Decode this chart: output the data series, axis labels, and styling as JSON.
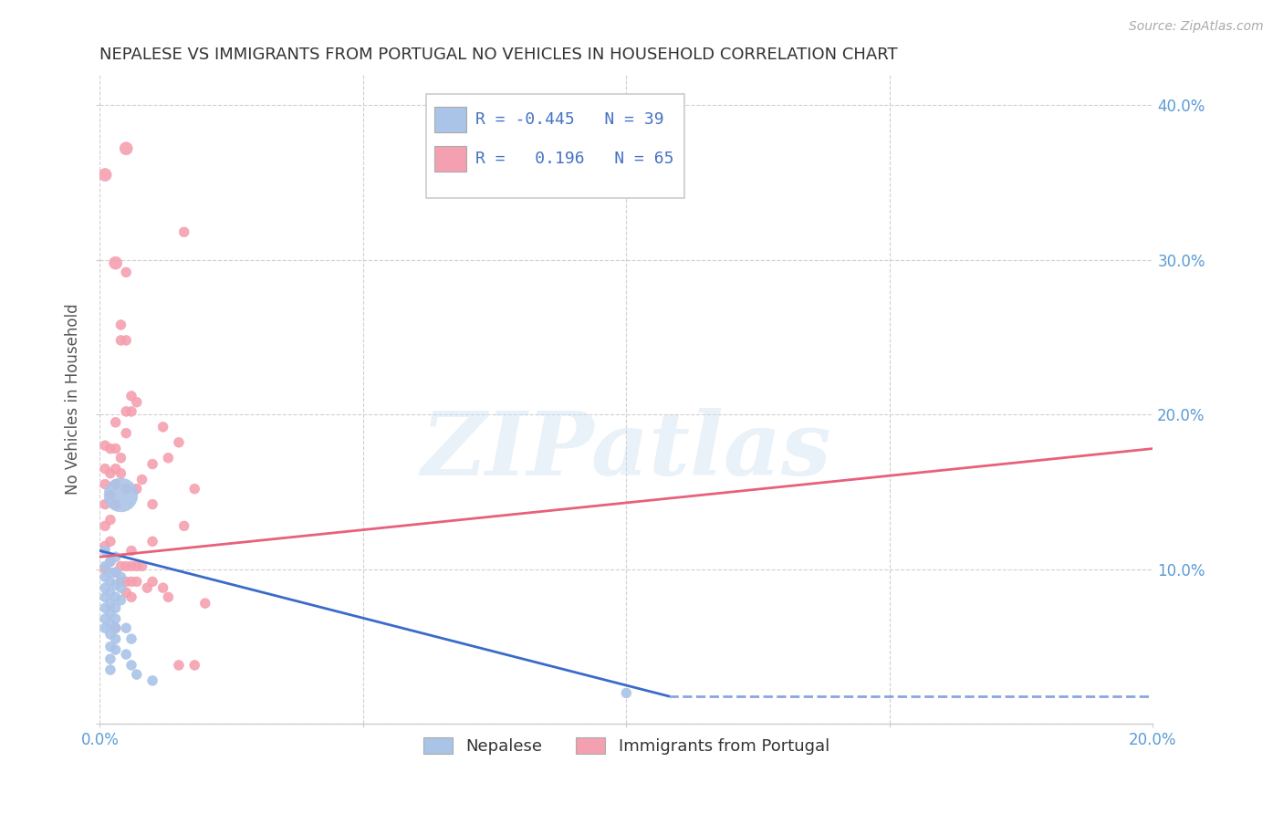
{
  "title": "NEPALESE VS IMMIGRANTS FROM PORTUGAL NO VEHICLES IN HOUSEHOLD CORRELATION CHART",
  "source": "Source: ZipAtlas.com",
  "ylabel": "No Vehicles in Household",
  "xlim": [
    0.0,
    0.2
  ],
  "ylim": [
    0.0,
    0.42
  ],
  "yticks": [
    0.0,
    0.1,
    0.2,
    0.3,
    0.4
  ],
  "xticks": [
    0.0,
    0.05,
    0.1,
    0.15,
    0.2
  ],
  "ytick_labels_right": [
    "",
    "10.0%",
    "20.0%",
    "30.0%",
    "40.0%"
  ],
  "nepalese_color": "#aac4e8",
  "portugal_color": "#f5a0b0",
  "nepalese_line_color": "#3a6bc9",
  "portugal_line_color": "#e8607a",
  "legend_text_color": "#4472c4",
  "watermark": "ZIPatlas",
  "background_color": "#ffffff",
  "nepalese_points": [
    [
      0.001,
      0.112
    ],
    [
      0.001,
      0.102
    ],
    [
      0.001,
      0.095
    ],
    [
      0.001,
      0.088
    ],
    [
      0.001,
      0.082
    ],
    [
      0.001,
      0.075
    ],
    [
      0.001,
      0.068
    ],
    [
      0.001,
      0.062
    ],
    [
      0.002,
      0.105
    ],
    [
      0.002,
      0.098
    ],
    [
      0.002,
      0.092
    ],
    [
      0.002,
      0.085
    ],
    [
      0.002,
      0.078
    ],
    [
      0.002,
      0.072
    ],
    [
      0.002,
      0.065
    ],
    [
      0.002,
      0.058
    ],
    [
      0.002,
      0.05
    ],
    [
      0.002,
      0.042
    ],
    [
      0.002,
      0.035
    ],
    [
      0.003,
      0.108
    ],
    [
      0.003,
      0.098
    ],
    [
      0.003,
      0.09
    ],
    [
      0.003,
      0.082
    ],
    [
      0.003,
      0.075
    ],
    [
      0.003,
      0.068
    ],
    [
      0.003,
      0.062
    ],
    [
      0.003,
      0.055
    ],
    [
      0.003,
      0.048
    ],
    [
      0.004,
      0.095
    ],
    [
      0.004,
      0.088
    ],
    [
      0.004,
      0.08
    ],
    [
      0.004,
      0.148
    ],
    [
      0.005,
      0.062
    ],
    [
      0.005,
      0.045
    ],
    [
      0.006,
      0.055
    ],
    [
      0.006,
      0.038
    ],
    [
      0.007,
      0.032
    ],
    [
      0.01,
      0.028
    ],
    [
      0.1,
      0.02
    ]
  ],
  "nepalese_sizes": [
    60,
    60,
    60,
    60,
    60,
    60,
    60,
    60,
    60,
    60,
    60,
    60,
    60,
    60,
    60,
    60,
    60,
    60,
    60,
    60,
    60,
    60,
    60,
    60,
    60,
    60,
    60,
    60,
    60,
    60,
    60,
    700,
    60,
    60,
    60,
    60,
    60,
    60,
    60
  ],
  "portugal_points": [
    [
      0.001,
      0.355
    ],
    [
      0.001,
      0.18
    ],
    [
      0.001,
      0.165
    ],
    [
      0.001,
      0.155
    ],
    [
      0.001,
      0.142
    ],
    [
      0.001,
      0.128
    ],
    [
      0.001,
      0.115
    ],
    [
      0.001,
      0.1
    ],
    [
      0.002,
      0.178
    ],
    [
      0.002,
      0.162
    ],
    [
      0.002,
      0.148
    ],
    [
      0.002,
      0.132
    ],
    [
      0.002,
      0.118
    ],
    [
      0.002,
      0.105
    ],
    [
      0.003,
      0.298
    ],
    [
      0.003,
      0.195
    ],
    [
      0.003,
      0.178
    ],
    [
      0.003,
      0.165
    ],
    [
      0.003,
      0.155
    ],
    [
      0.003,
      0.142
    ],
    [
      0.003,
      0.098
    ],
    [
      0.003,
      0.062
    ],
    [
      0.004,
      0.258
    ],
    [
      0.004,
      0.248
    ],
    [
      0.004,
      0.172
    ],
    [
      0.004,
      0.162
    ],
    [
      0.004,
      0.102
    ],
    [
      0.004,
      0.092
    ],
    [
      0.005,
      0.372
    ],
    [
      0.005,
      0.292
    ],
    [
      0.005,
      0.248
    ],
    [
      0.005,
      0.202
    ],
    [
      0.005,
      0.188
    ],
    [
      0.005,
      0.152
    ],
    [
      0.005,
      0.102
    ],
    [
      0.005,
      0.092
    ],
    [
      0.005,
      0.085
    ],
    [
      0.006,
      0.212
    ],
    [
      0.006,
      0.202
    ],
    [
      0.006,
      0.112
    ],
    [
      0.006,
      0.102
    ],
    [
      0.006,
      0.092
    ],
    [
      0.006,
      0.082
    ],
    [
      0.007,
      0.208
    ],
    [
      0.007,
      0.152
    ],
    [
      0.007,
      0.102
    ],
    [
      0.007,
      0.092
    ],
    [
      0.008,
      0.158
    ],
    [
      0.008,
      0.102
    ],
    [
      0.009,
      0.088
    ],
    [
      0.01,
      0.168
    ],
    [
      0.01,
      0.142
    ],
    [
      0.01,
      0.118
    ],
    [
      0.01,
      0.092
    ],
    [
      0.012,
      0.192
    ],
    [
      0.012,
      0.088
    ],
    [
      0.013,
      0.172
    ],
    [
      0.013,
      0.082
    ],
    [
      0.015,
      0.182
    ],
    [
      0.015,
      0.038
    ],
    [
      0.016,
      0.318
    ],
    [
      0.016,
      0.128
    ],
    [
      0.018,
      0.152
    ],
    [
      0.018,
      0.038
    ],
    [
      0.02,
      0.078
    ]
  ],
  "portugal_sizes": [
    100,
    60,
    60,
    60,
    60,
    60,
    60,
    60,
    60,
    60,
    60,
    60,
    60,
    60,
    100,
    60,
    60,
    60,
    60,
    60,
    60,
    60,
    60,
    60,
    60,
    60,
    60,
    60,
    100,
    60,
    60,
    60,
    60,
    60,
    60,
    60,
    60,
    60,
    60,
    60,
    60,
    60,
    60,
    60,
    60,
    60,
    60,
    60,
    60,
    60,
    60,
    60,
    60,
    60,
    60,
    60,
    60,
    60,
    60,
    60,
    60,
    60,
    60,
    60,
    60
  ],
  "nepalese_line": {
    "x0": 0.0,
    "x1": 0.108,
    "y0": 0.112,
    "y1": 0.018
  },
  "nepalese_line_dash": {
    "x0": 0.108,
    "x1": 0.2,
    "y0": 0.018,
    "y1": 0.018
  },
  "portugal_line": {
    "x0": 0.0,
    "x1": 0.2,
    "y0": 0.108,
    "y1": 0.178
  }
}
